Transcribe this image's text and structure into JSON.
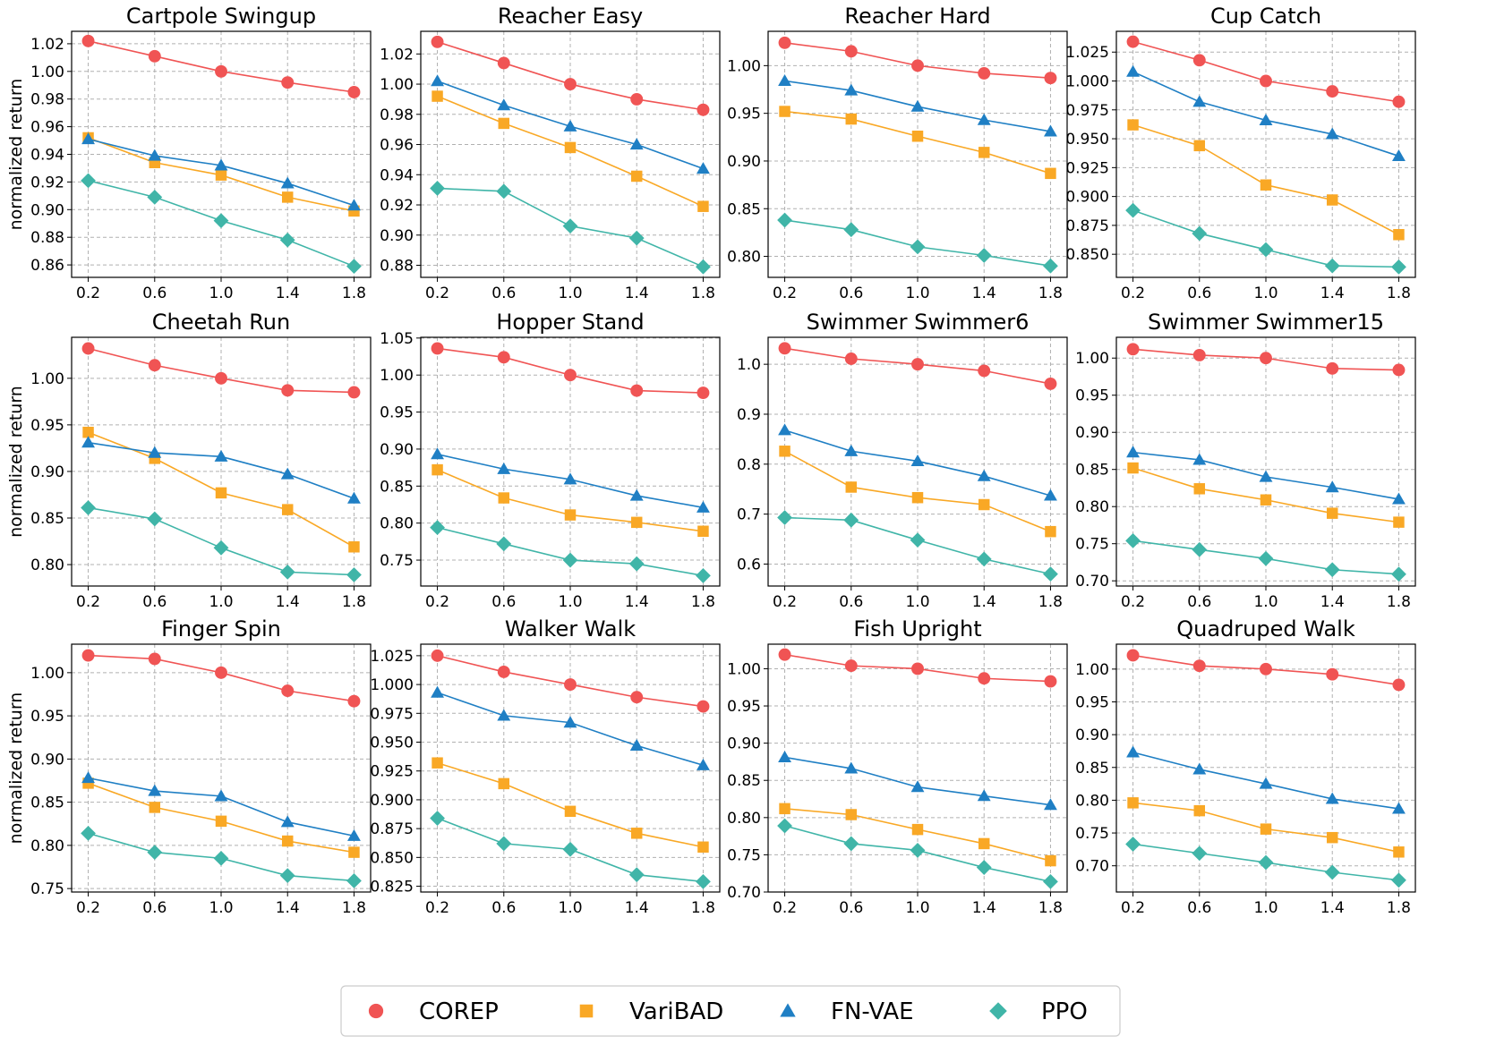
{
  "chart_data": {
    "type": "line",
    "ylabel": "normalized return",
    "x": [
      0.2,
      0.6,
      1.0,
      1.4,
      1.8
    ],
    "x_tick_labels": [
      "0.2",
      "0.6",
      "1.0",
      "1.4",
      "1.8"
    ],
    "series_styles": [
      {
        "name": "COREP",
        "color": "#f05454",
        "marker": "circle"
      },
      {
        "name": "VariBAD",
        "color": "#f9a825",
        "marker": "square"
      },
      {
        "name": "FN-VAE",
        "color": "#1f7fc4",
        "marker": "triangle"
      },
      {
        "name": "PPO",
        "color": "#40b5a8",
        "marker": "diamond"
      }
    ],
    "legend": {
      "position": "bottom-center",
      "entries": [
        "COREP",
        "VariBAD",
        "FN-VAE",
        "PPO"
      ]
    },
    "grid": true,
    "panels": [
      {
        "title": "Cartpole Swingup",
        "ylim": [
          0.851,
          1.029
        ],
        "yticks": [
          0.86,
          0.88,
          0.9,
          0.92,
          0.94,
          0.96,
          0.98,
          1.0,
          1.02
        ],
        "ytick_labels": [
          "0.86",
          "0.88",
          "0.90",
          "0.92",
          "0.94",
          "0.96",
          "0.98",
          "1.00",
          "1.02"
        ],
        "series": [
          {
            "name": "COREP",
            "values": [
              1.022,
              1.011,
              1.0,
              0.992,
              0.985
            ]
          },
          {
            "name": "VariBAD",
            "values": [
              0.952,
              0.934,
              0.925,
              0.909,
              0.899
            ]
          },
          {
            "name": "FN-VAE",
            "values": [
              0.951,
              0.939,
              0.932,
              0.919,
              0.903
            ]
          },
          {
            "name": "PPO",
            "values": [
              0.921,
              0.909,
              0.892,
              0.878,
              0.859
            ]
          }
        ]
      },
      {
        "title": "Reacher Easy",
        "ylim": [
          0.872,
          1.035
        ],
        "yticks": [
          0.88,
          0.9,
          0.92,
          0.94,
          0.96,
          0.98,
          1.0,
          1.02
        ],
        "ytick_labels": [
          "0.88",
          "0.90",
          "0.92",
          "0.94",
          "0.96",
          "0.98",
          "1.00",
          "1.02"
        ],
        "series": [
          {
            "name": "COREP",
            "values": [
              1.028,
              1.014,
              1.0,
              0.99,
              0.983
            ]
          },
          {
            "name": "VariBAD",
            "values": [
              0.992,
              0.974,
              0.958,
              0.939,
              0.919
            ]
          },
          {
            "name": "FN-VAE",
            "values": [
              1.002,
              0.986,
              0.972,
              0.96,
              0.944
            ]
          },
          {
            "name": "PPO",
            "values": [
              0.931,
              0.929,
              0.906,
              0.898,
              0.879
            ]
          }
        ]
      },
      {
        "title": "Reacher Hard",
        "ylim": [
          0.778,
          1.036
        ],
        "yticks": [
          0.8,
          0.85,
          0.9,
          0.95,
          1.0
        ],
        "ytick_labels": [
          "0.80",
          "0.85",
          "0.90",
          "0.95",
          "1.00"
        ],
        "series": [
          {
            "name": "COREP",
            "values": [
              1.024,
              1.015,
              1.0,
              0.992,
              0.987
            ]
          },
          {
            "name": "VariBAD",
            "values": [
              0.952,
              0.944,
              0.926,
              0.909,
              0.887
            ]
          },
          {
            "name": "FN-VAE",
            "values": [
              0.984,
              0.974,
              0.957,
              0.943,
              0.931
            ]
          },
          {
            "name": "PPO",
            "values": [
              0.838,
              0.828,
              0.81,
              0.801,
              0.79
            ]
          }
        ]
      },
      {
        "title": "Cup Catch",
        "ylim": [
          0.83,
          1.043
        ],
        "yticks": [
          0.85,
          0.875,
          0.9,
          0.925,
          0.95,
          0.975,
          1.0,
          1.025
        ],
        "ytick_labels": [
          "0.850",
          "0.875",
          "0.900",
          "0.925",
          "0.950",
          "0.975",
          "1.000",
          "1.025"
        ],
        "series": [
          {
            "name": "COREP",
            "values": [
              1.034,
              1.018,
              1.0,
              0.991,
              0.982
            ]
          },
          {
            "name": "VariBAD",
            "values": [
              0.962,
              0.944,
              0.91,
              0.897,
              0.867
            ]
          },
          {
            "name": "FN-VAE",
            "values": [
              1.008,
              0.982,
              0.966,
              0.954,
              0.935
            ]
          },
          {
            "name": "PPO",
            "values": [
              0.888,
              0.868,
              0.854,
              0.84,
              0.839
            ]
          }
        ]
      },
      {
        "title": "Cheetah Run",
        "ylim": [
          0.777,
          1.044
        ],
        "yticks": [
          0.8,
          0.85,
          0.9,
          0.95,
          1.0
        ],
        "ytick_labels": [
          "0.80",
          "0.85",
          "0.90",
          "0.95",
          "1.00"
        ],
        "series": [
          {
            "name": "COREP",
            "values": [
              1.032,
              1.014,
              1.0,
              0.987,
              0.985
            ]
          },
          {
            "name": "VariBAD",
            "values": [
              0.942,
              0.914,
              0.877,
              0.859,
              0.819
            ]
          },
          {
            "name": "FN-VAE",
            "values": [
              0.931,
              0.92,
              0.916,
              0.897,
              0.871
            ]
          },
          {
            "name": "PPO",
            "values": [
              0.861,
              0.849,
              0.818,
              0.792,
              0.789
            ]
          }
        ]
      },
      {
        "title": "Hopper Stand",
        "ylim": [
          0.715,
          1.051
        ],
        "yticks": [
          0.75,
          0.8,
          0.85,
          0.9,
          0.95,
          1.0,
          1.05
        ],
        "ytick_labels": [
          "0.75",
          "0.80",
          "0.85",
          "0.90",
          "0.95",
          "1.00",
          "1.05"
        ],
        "series": [
          {
            "name": "COREP",
            "values": [
              1.036,
              1.024,
              1.0,
              0.979,
              0.976
            ]
          },
          {
            "name": "VariBAD",
            "values": [
              0.872,
              0.834,
              0.811,
              0.801,
              0.789
            ]
          },
          {
            "name": "FN-VAE",
            "values": [
              0.893,
              0.873,
              0.859,
              0.837,
              0.821
            ]
          },
          {
            "name": "PPO",
            "values": [
              0.794,
              0.772,
              0.75,
              0.745,
              0.729
            ]
          }
        ]
      },
      {
        "title": "Swimmer Swimmer6",
        "ylim": [
          0.556,
          1.054
        ],
        "yticks": [
          0.6,
          0.7,
          0.8,
          0.9,
          1.0
        ],
        "ytick_labels": [
          "0.6",
          "0.7",
          "0.8",
          "0.9",
          "1.0"
        ],
        "series": [
          {
            "name": "COREP",
            "values": [
              1.032,
              1.011,
              1.0,
              0.987,
              0.961
            ]
          },
          {
            "name": "VariBAD",
            "values": [
              0.826,
              0.754,
              0.733,
              0.719,
              0.665
            ]
          },
          {
            "name": "FN-VAE",
            "values": [
              0.868,
              0.826,
              0.806,
              0.776,
              0.737
            ]
          },
          {
            "name": "PPO",
            "values": [
              0.693,
              0.688,
              0.648,
              0.61,
              0.58
            ]
          }
        ]
      },
      {
        "title": "Swimmer Swimmer15",
        "ylim": [
          0.693,
          1.028
        ],
        "yticks": [
          0.7,
          0.75,
          0.8,
          0.85,
          0.9,
          0.95,
          1.0
        ],
        "ytick_labels": [
          "0.70",
          "0.75",
          "0.80",
          "0.85",
          "0.90",
          "0.95",
          "1.00"
        ],
        "series": [
          {
            "name": "COREP",
            "values": [
              1.012,
              1.004,
              1.0,
              0.986,
              0.984
            ]
          },
          {
            "name": "VariBAD",
            "values": [
              0.852,
              0.824,
              0.809,
              0.791,
              0.779
            ]
          },
          {
            "name": "FN-VAE",
            "values": [
              0.873,
              0.863,
              0.84,
              0.826,
              0.81
            ]
          },
          {
            "name": "PPO",
            "values": [
              0.754,
              0.742,
              0.73,
              0.715,
              0.709
            ]
          }
        ]
      },
      {
        "title": "Finger Spin",
        "ylim": [
          0.746,
          1.033
        ],
        "yticks": [
          0.75,
          0.8,
          0.85,
          0.9,
          0.95,
          1.0
        ],
        "ytick_labels": [
          "0.75",
          "0.80",
          "0.85",
          "0.90",
          "0.95",
          "1.00"
        ],
        "series": [
          {
            "name": "COREP",
            "values": [
              1.02,
              1.016,
              1.0,
              0.979,
              0.967
            ]
          },
          {
            "name": "VariBAD",
            "values": [
              0.872,
              0.844,
              0.828,
              0.805,
              0.792
            ]
          },
          {
            "name": "FN-VAE",
            "values": [
              0.878,
              0.863,
              0.857,
              0.827,
              0.811
            ]
          },
          {
            "name": "PPO",
            "values": [
              0.814,
              0.792,
              0.785,
              0.765,
              0.759
            ]
          }
        ]
      },
      {
        "title": "Walker Walk",
        "ylim": [
          0.82,
          1.035
        ],
        "yticks": [
          0.825,
          0.85,
          0.875,
          0.9,
          0.925,
          0.95,
          0.975,
          1.0,
          1.025
        ],
        "ytick_labels": [
          "0.825",
          "0.850",
          "0.875",
          "0.900",
          "0.925",
          "0.950",
          "0.975",
          "1.000",
          "1.025"
        ],
        "series": [
          {
            "name": "COREP",
            "values": [
              1.025,
              1.011,
              1.0,
              0.989,
              0.981
            ]
          },
          {
            "name": "VariBAD",
            "values": [
              0.932,
              0.914,
              0.89,
              0.871,
              0.859
            ]
          },
          {
            "name": "FN-VAE",
            "values": [
              0.993,
              0.973,
              0.967,
              0.947,
              0.93
            ]
          },
          {
            "name": "PPO",
            "values": [
              0.884,
              0.862,
              0.857,
              0.835,
              0.829
            ]
          }
        ]
      },
      {
        "title": "Fish Upright",
        "ylim": [
          0.7,
          1.033
        ],
        "yticks": [
          0.7,
          0.75,
          0.8,
          0.85,
          0.9,
          0.95,
          1.0
        ],
        "ytick_labels": [
          "0.70",
          "0.75",
          "0.80",
          "0.85",
          "0.90",
          "0.95",
          "1.00"
        ],
        "series": [
          {
            "name": "COREP",
            "values": [
              1.019,
              1.004,
              1.0,
              0.987,
              0.983
            ]
          },
          {
            "name": "VariBAD",
            "values": [
              0.812,
              0.804,
              0.784,
              0.765,
              0.742
            ]
          },
          {
            "name": "FN-VAE",
            "values": [
              0.881,
              0.866,
              0.841,
              0.829,
              0.817
            ]
          },
          {
            "name": "PPO",
            "values": [
              0.789,
              0.765,
              0.756,
              0.733,
              0.714
            ]
          }
        ]
      },
      {
        "title": "Quadruped Walk",
        "ylim": [
          0.66,
          1.038
        ],
        "yticks": [
          0.7,
          0.75,
          0.8,
          0.85,
          0.9,
          0.95,
          1.0
        ],
        "ytick_labels": [
          "0.70",
          "0.75",
          "0.80",
          "0.85",
          "0.90",
          "0.95",
          "1.00"
        ],
        "series": [
          {
            "name": "COREP",
            "values": [
              1.021,
              1.005,
              1.0,
              0.992,
              0.976
            ]
          },
          {
            "name": "VariBAD",
            "values": [
              0.796,
              0.784,
              0.756,
              0.743,
              0.721
            ]
          },
          {
            "name": "FN-VAE",
            "values": [
              0.873,
              0.847,
              0.825,
              0.802,
              0.787
            ]
          },
          {
            "name": "PPO",
            "values": [
              0.733,
              0.719,
              0.705,
              0.69,
              0.678
            ]
          }
        ]
      }
    ]
  }
}
